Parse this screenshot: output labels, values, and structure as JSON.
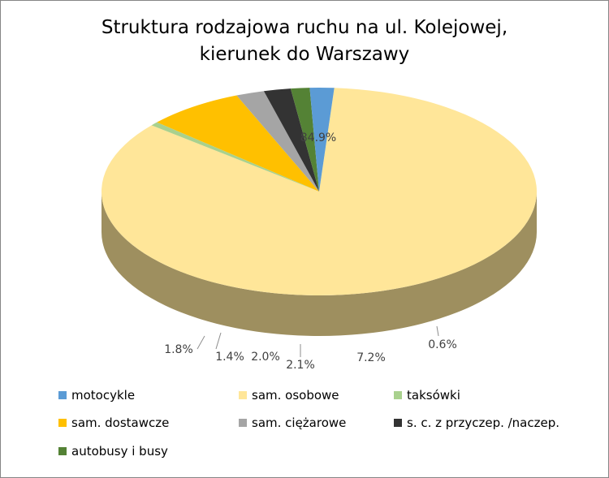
{
  "chart_data": {
    "type": "pie",
    "title_lines": [
      "Struktura rodzajowa ruchu na ul. Kolejowej,",
      "kierunek do Warszawy"
    ],
    "slices": [
      {
        "name": "sam. osobowe",
        "value": 84.9,
        "label": "84.9%",
        "color": "#FFE699"
      },
      {
        "name": "taksówki",
        "value": 0.6,
        "label": "0.6%",
        "color": "#A9D18E"
      },
      {
        "name": "sam. dostawcze",
        "value": 7.2,
        "label": "7.2%",
        "color": "#FFC000"
      },
      {
        "name": "sam. ciężarowe",
        "value": 2.1,
        "label": "2.1%",
        "color": "#A5A5A5"
      },
      {
        "name": "s. c. z przyczep. /naczep.",
        "value": 2.0,
        "label": "2.0%",
        "color": "#333333"
      },
      {
        "name": "autobusy i busy",
        "value": 1.4,
        "label": "1.4%",
        "color": "#548235"
      },
      {
        "name": "motocykle",
        "value": 1.8,
        "label": "1.8%",
        "color": "#5B9BD5"
      }
    ],
    "legend": [
      {
        "name": "motocykle",
        "color": "#5B9BD5"
      },
      {
        "name": "sam. osobowe",
        "color": "#FFE699"
      },
      {
        "name": "taksówki",
        "color": "#A9D18E"
      },
      {
        "name": "sam. dostawcze",
        "color": "#FFC000"
      },
      {
        "name": "sam. ciężarowe",
        "color": "#A5A5A5"
      },
      {
        "name": "s. c. z przyczep. /naczep.",
        "color": "#333333"
      },
      {
        "name": "autobusy i busy",
        "color": "#548235"
      }
    ],
    "legend_position": "bottom",
    "style": "3d-pie"
  }
}
